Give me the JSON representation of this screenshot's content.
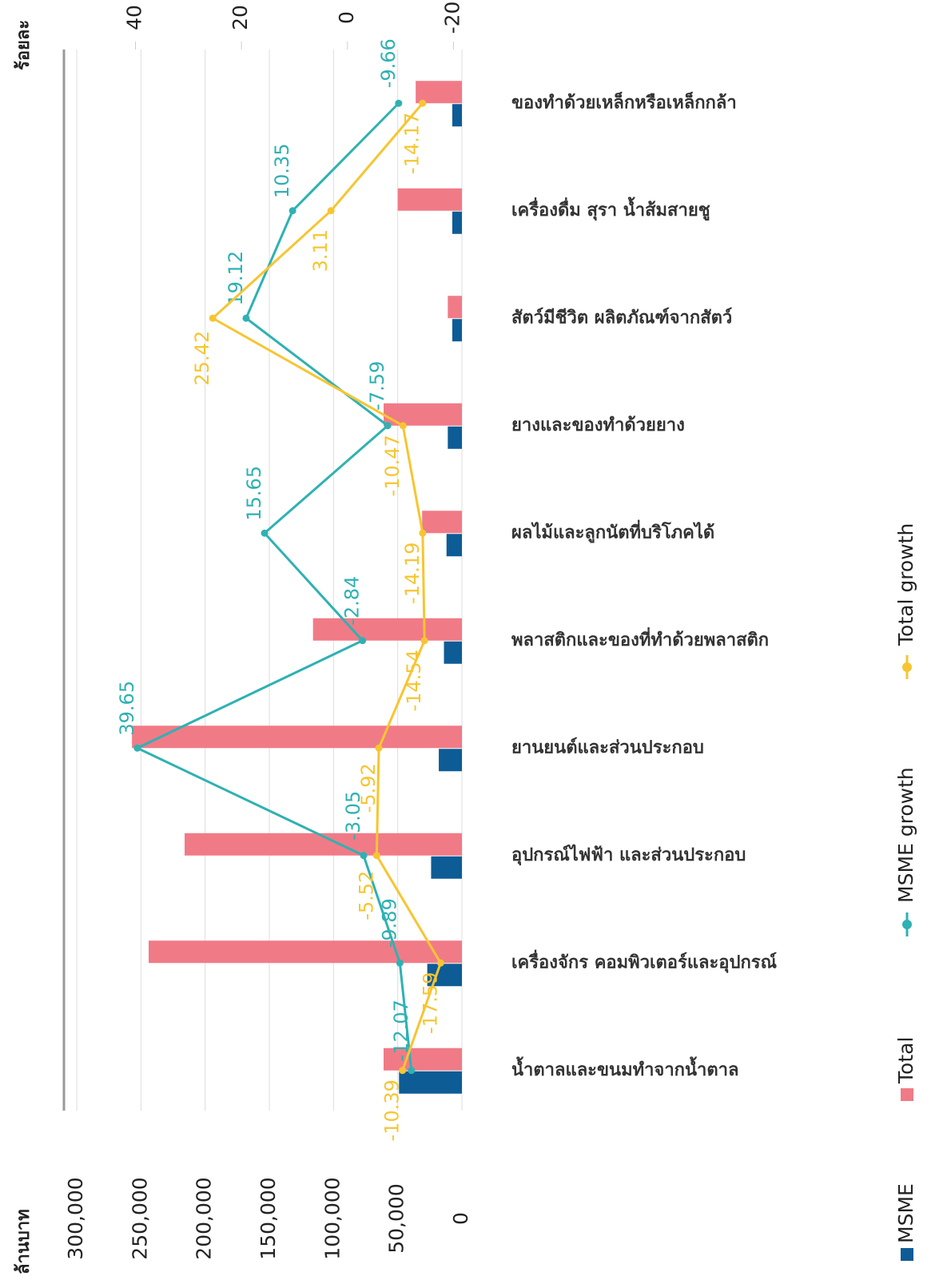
{
  "chart_data": {
    "type": "bar",
    "y_label": "ล้านบาท",
    "y2_label": "ร้อยละ",
    "categories": [
      "น้ำตาลและขนมทำจากน้ำตาล",
      "เครื่องจักร คอมพิวเตอร์และอุปกรณ์",
      "อุปกรณ์ไฟฟ้า และส่วนประกอบ",
      "ยานยนต์และส่วนประกอบ",
      "พลาสติกและของที่ทำด้วยพลาสติก",
      "ผลไม้และลูกนัตที่บริโภคได้",
      "ยางและของทำด้วยยาง",
      "สัตว์มีชีวิต ผลิตภัณฑ์จากสัตว์",
      "เครื่องดื่ม สุรา น้ำส้มสายชู",
      "ของทำด้วยเหล็กหรือเหล็กกล้า"
    ],
    "series": [
      {
        "name": "MSME",
        "type": "bar",
        "color": "#0d5c96",
        "values": [
          49000,
          27000,
          24000,
          18000,
          14000,
          12000,
          11000,
          7500,
          7500,
          7500
        ]
      },
      {
        "name": "Total",
        "type": "bar",
        "color": "#f07b87",
        "values": [
          61000,
          244000,
          216000,
          257000,
          116000,
          31000,
          61000,
          11000,
          50000,
          36000
        ]
      },
      {
        "name": "MSME growth",
        "type": "line",
        "axis": "y2",
        "color": "#2fb1b3",
        "values": [
          -12.07,
          -9.89,
          -3.05,
          39.65,
          -2.84,
          15.65,
          -7.59,
          19.12,
          10.35,
          -9.66
        ]
      },
      {
        "name": "Total growth",
        "type": "line",
        "axis": "y2",
        "color": "#f7c531",
        "values": [
          -10.39,
          -17.59,
          -5.52,
          -5.92,
          -14.54,
          -14.19,
          -10.47,
          25.42,
          3.11,
          -14.17
        ]
      }
    ],
    "ylim": [
      0,
      310000
    ],
    "yticks": [
      0,
      {
        "value": 50000,
        "label": "50,000"
      },
      {
        "value": 100000,
        "label": "100,000"
      },
      {
        "value": 150000,
        "label": "150,000"
      },
      {
        "value": 200000,
        "label": "200,000"
      },
      {
        "value": 250000,
        "label": "250,000"
      },
      {
        "value": 300000,
        "label": "300,000"
      }
    ],
    "y2lim": [
      -21.6,
      53.5
    ],
    "y2ticks": [
      -20,
      0,
      20,
      40
    ],
    "grid": true
  }
}
